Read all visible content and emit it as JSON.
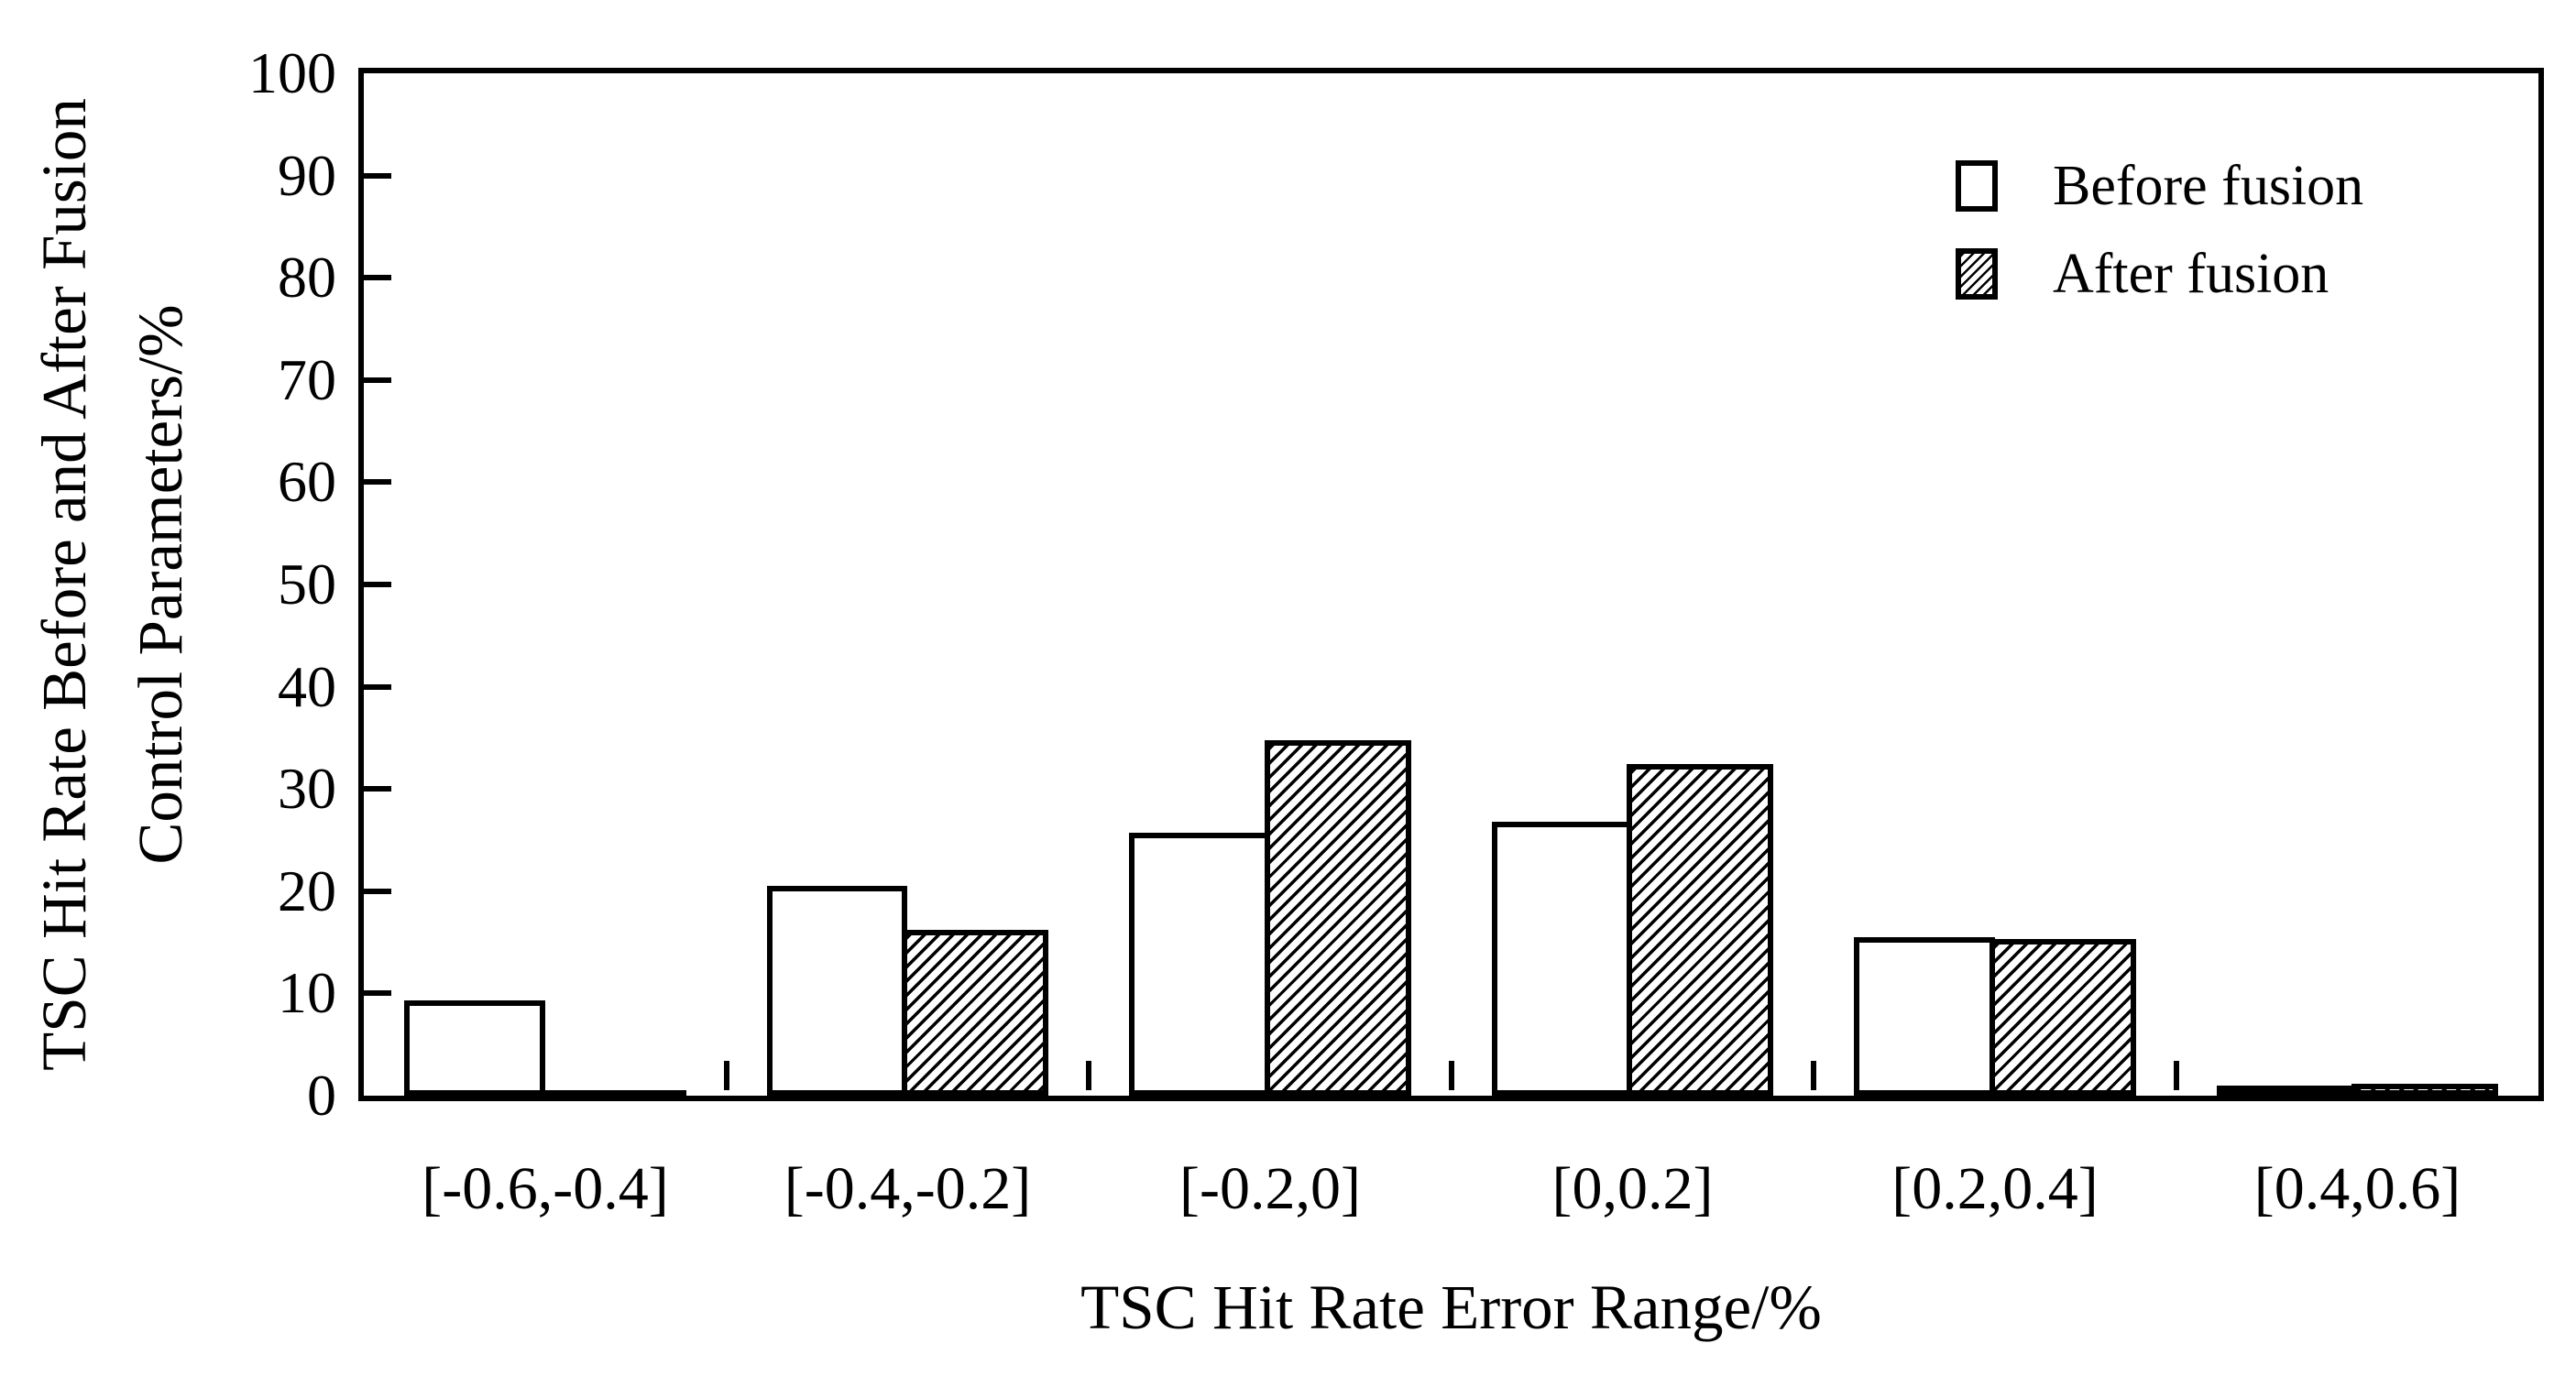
{
  "figure": {
    "background_color": "#ffffff",
    "ink_color": "#000000"
  },
  "chart_data": {
    "type": "bar",
    "title": "",
    "xlabel": "TSC Hit Rate Error Range/%",
    "ylabel_line1": "TSC Hit Rate Before and After Fusion",
    "ylabel_line2": "Control Parameters/%",
    "categories": [
      "[-0.6,-0.4]",
      "[-0.4,-0.2]",
      "[-0.2,0]",
      "[0,0.2]",
      "[0.2,0.4]",
      "[0.4,0.6]"
    ],
    "series": [
      {
        "name": "Before fusion",
        "fill": "white",
        "values": [
          9.3,
          20.5,
          25.7,
          26.8,
          15.5,
          1.0
        ]
      },
      {
        "name": "After fusion",
        "fill": "hatch",
        "values": [
          0.4,
          16.2,
          34.8,
          32.4,
          15.3,
          1.2
        ]
      }
    ],
    "ylim": [
      0,
      100
    ],
    "y_ticks": [
      0,
      10,
      20,
      30,
      40,
      50,
      60,
      70,
      80,
      90,
      100
    ],
    "grid": false,
    "legend_position": "top-right"
  }
}
